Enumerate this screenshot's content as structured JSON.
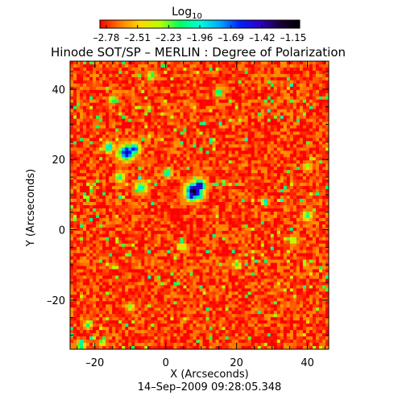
{
  "chart_data": {
    "type": "heatmap",
    "title": "Hinode SOT/SP – MERLIN : Degree of Polarization",
    "colorbar": {
      "label_base": "Log",
      "label_sub": "10",
      "tick_labels": [
        "–2.78",
        "–2.51",
        "–2.23",
        "–1.96",
        "–1.69",
        "–1.42",
        "–1.15"
      ],
      "range": [
        -2.78,
        -1.15
      ],
      "colors": [
        "#ff0000",
        "#ff7a00",
        "#ffd800",
        "#b8ff00",
        "#00ff60",
        "#00ffd8",
        "#00a8ff",
        "#0020ff",
        "#3000c8",
        "#18003a",
        "#000000"
      ]
    },
    "xlabel": "X (Arcseconds)",
    "ylabel": "Y (Arcseconds)",
    "xlim": [
      -27,
      46
    ],
    "ylim": [
      -34,
      48
    ],
    "x_ticks": [
      -20,
      0,
      20,
      40
    ],
    "x_tick_labels": [
      "–20",
      "0",
      "20",
      "40"
    ],
    "y_ticks": [
      -20,
      0,
      20,
      40
    ],
    "y_tick_labels": [
      "–20",
      "0",
      "20",
      "40"
    ],
    "background_log_value": -2.7,
    "features": [
      {
        "x": 8,
        "y": 11,
        "radius": 2.2,
        "log_value": -1.15
      },
      {
        "x": 9.5,
        "y": 12.5,
        "radius": 1.6,
        "log_value": -1.3
      },
      {
        "x": 7,
        "y": 9.5,
        "radius": 1.2,
        "log_value": -1.5
      },
      {
        "x": -11,
        "y": 22,
        "radius": 2.0,
        "log_value": -1.4
      },
      {
        "x": -9,
        "y": 23,
        "radius": 1.5,
        "log_value": -1.55
      },
      {
        "x": -16,
        "y": 23.5,
        "radius": 1.2,
        "log_value": -1.75
      },
      {
        "x": 0.5,
        "y": 16,
        "radius": 1.0,
        "log_value": -1.7
      },
      {
        "x": -7,
        "y": 12,
        "radius": 1.5,
        "log_value": -1.95
      },
      {
        "x": -13,
        "y": 15,
        "radius": 1.2,
        "log_value": -2.0
      },
      {
        "x": 15,
        "y": 39,
        "radius": 1.0,
        "log_value": -1.9
      },
      {
        "x": -15,
        "y": 37,
        "radius": 1.0,
        "log_value": -2.0
      },
      {
        "x": 28,
        "y": 8,
        "radius": 0.8,
        "log_value": -1.6
      },
      {
        "x": 40,
        "y": 4,
        "radius": 1.2,
        "log_value": -2.0
      },
      {
        "x": -24,
        "y": -33,
        "radius": 1.2,
        "log_value": -1.95
      },
      {
        "x": -18,
        "y": -32,
        "radius": 0.8,
        "log_value": -2.0
      },
      {
        "x": -22,
        "y": -27,
        "radius": 1.0,
        "log_value": -2.1
      },
      {
        "x": -4,
        "y": 44,
        "radius": 1.0,
        "log_value": -2.1
      },
      {
        "x": 36,
        "y": -3,
        "radius": 1.0,
        "log_value": -2.1
      },
      {
        "x": -10,
        "y": -22,
        "radius": 1.0,
        "log_value": -2.15
      },
      {
        "x": 20,
        "y": -10,
        "radius": 1.0,
        "log_value": -2.15
      },
      {
        "x": 5,
        "y": -5,
        "radius": 1.0,
        "log_value": -2.2
      },
      {
        "x": 40,
        "y": 18,
        "radius": 1.0,
        "log_value": -2.2
      }
    ],
    "date_label": "14–Sep–2009 09:28:05.348",
    "grid": false,
    "legend": "none"
  }
}
